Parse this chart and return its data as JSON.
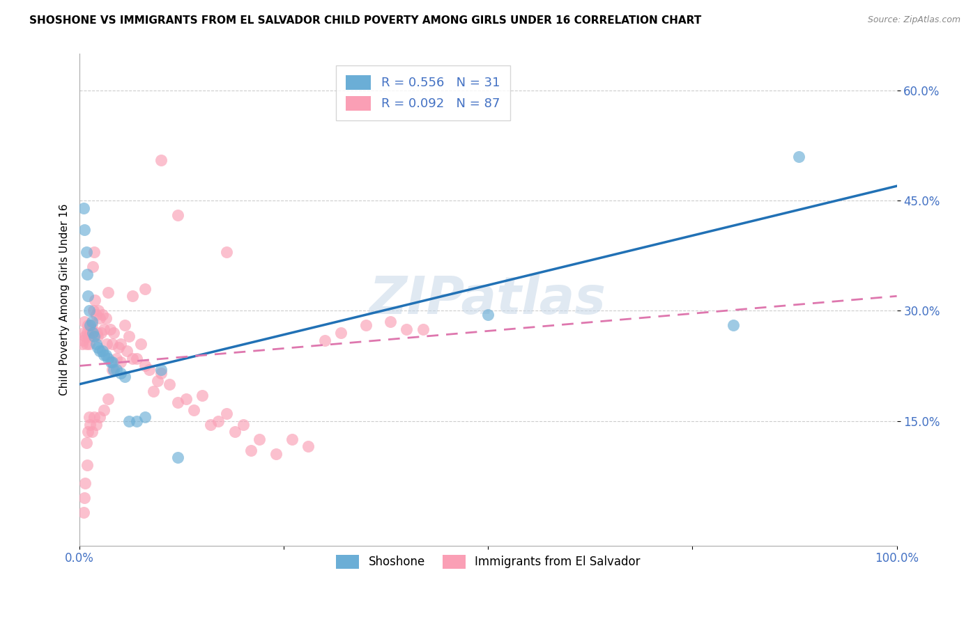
{
  "title": "SHOSHONE VS IMMIGRANTS FROM EL SALVADOR CHILD POVERTY AMONG GIRLS UNDER 16 CORRELATION CHART",
  "source": "Source: ZipAtlas.com",
  "ylabel": "Child Poverty Among Girls Under 16",
  "x_min": 0.0,
  "x_max": 1.0,
  "y_min": -0.02,
  "y_max": 0.65,
  "xticks": [
    0.0,
    0.25,
    0.5,
    0.75,
    1.0
  ],
  "xticklabels": [
    "0.0%",
    "",
    "",
    "",
    "100.0%"
  ],
  "yticks": [
    0.15,
    0.3,
    0.45,
    0.6
  ],
  "yticklabels": [
    "15.0%",
    "30.0%",
    "45.0%",
    "60.0%"
  ],
  "legend_R1": "R = 0.556",
  "legend_N1": "N = 31",
  "legend_R2": "R = 0.092",
  "legend_N2": "N = 87",
  "color_blue": "#6baed6",
  "color_pink": "#fa9fb5",
  "color_line_blue": "#2171b5",
  "color_line_pink": "#de77ae",
  "watermark": "ZIPatlas",
  "blue_line_x0": 0.0,
  "blue_line_y0": 0.2,
  "blue_line_x1": 1.0,
  "blue_line_y1": 0.47,
  "pink_line_x0": 0.0,
  "pink_line_y0": 0.225,
  "pink_line_x1": 1.0,
  "pink_line_y1": 0.32,
  "shoshone_x": [
    0.005,
    0.006,
    0.008,
    0.009,
    0.01,
    0.012,
    0.013,
    0.015,
    0.016,
    0.018,
    0.02,
    0.022,
    0.025,
    0.028,
    0.03,
    0.032,
    0.035,
    0.038,
    0.04,
    0.042,
    0.045,
    0.05,
    0.055,
    0.06,
    0.07,
    0.08,
    0.1,
    0.12,
    0.5,
    0.8,
    0.88
  ],
  "shoshone_y": [
    0.44,
    0.41,
    0.38,
    0.35,
    0.32,
    0.3,
    0.28,
    0.285,
    0.27,
    0.265,
    0.255,
    0.25,
    0.245,
    0.245,
    0.24,
    0.24,
    0.235,
    0.23,
    0.23,
    0.22,
    0.22,
    0.215,
    0.21,
    0.15,
    0.15,
    0.155,
    0.22,
    0.1,
    0.295,
    0.28,
    0.51
  ],
  "salvador_x": [
    0.003,
    0.004,
    0.005,
    0.006,
    0.007,
    0.008,
    0.009,
    0.01,
    0.011,
    0.012,
    0.013,
    0.014,
    0.015,
    0.016,
    0.017,
    0.018,
    0.019,
    0.02,
    0.021,
    0.022,
    0.023,
    0.025,
    0.026,
    0.028,
    0.03,
    0.032,
    0.033,
    0.035,
    0.037,
    0.04,
    0.042,
    0.045,
    0.048,
    0.05,
    0.055,
    0.058,
    0.06,
    0.065,
    0.07,
    0.075,
    0.08,
    0.085,
    0.09,
    0.095,
    0.1,
    0.11,
    0.12,
    0.13,
    0.14,
    0.15,
    0.16,
    0.17,
    0.18,
    0.19,
    0.2,
    0.21,
    0.22,
    0.24,
    0.26,
    0.28,
    0.3,
    0.32,
    0.35,
    0.38,
    0.4,
    0.42,
    0.18,
    0.12,
    0.1,
    0.08,
    0.065,
    0.05,
    0.04,
    0.035,
    0.03,
    0.025,
    0.02,
    0.018,
    0.015,
    0.013,
    0.012,
    0.01,
    0.009,
    0.008,
    0.007,
    0.006,
    0.005
  ],
  "salvador_y": [
    0.255,
    0.26,
    0.27,
    0.285,
    0.265,
    0.255,
    0.27,
    0.28,
    0.265,
    0.255,
    0.27,
    0.275,
    0.28,
    0.36,
    0.3,
    0.38,
    0.315,
    0.295,
    0.27,
    0.265,
    0.3,
    0.29,
    0.27,
    0.295,
    0.275,
    0.29,
    0.255,
    0.325,
    0.275,
    0.255,
    0.27,
    0.235,
    0.25,
    0.255,
    0.28,
    0.245,
    0.265,
    0.235,
    0.235,
    0.255,
    0.225,
    0.22,
    0.19,
    0.205,
    0.215,
    0.2,
    0.175,
    0.18,
    0.165,
    0.185,
    0.145,
    0.15,
    0.16,
    0.135,
    0.145,
    0.11,
    0.125,
    0.105,
    0.125,
    0.115,
    0.26,
    0.27,
    0.28,
    0.285,
    0.275,
    0.275,
    0.38,
    0.43,
    0.505,
    0.33,
    0.32,
    0.23,
    0.22,
    0.18,
    0.165,
    0.155,
    0.145,
    0.155,
    0.135,
    0.145,
    0.155,
    0.135,
    0.09,
    0.12,
    0.065,
    0.045,
    0.025
  ]
}
